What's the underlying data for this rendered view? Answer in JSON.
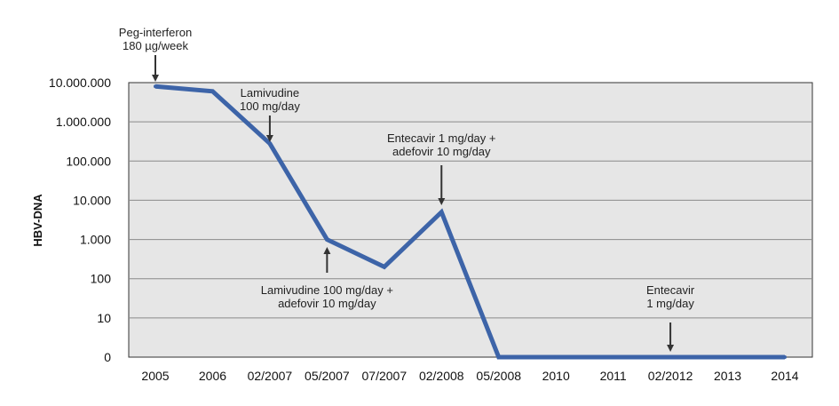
{
  "chart_data": {
    "type": "line",
    "title": "",
    "xlabel": "",
    "ylabel": "HBV-DNA",
    "y_scale": "log",
    "y_ticks": [
      "0",
      "10",
      "100",
      "1.000",
      "10.000",
      "100.000",
      "1.000.000",
      "10.000.000"
    ],
    "categories": [
      "2005",
      "2006",
      "02/2007",
      "05/2007",
      "07/2007",
      "02/2008",
      "05/2008",
      "2010",
      "2011",
      "02/2012",
      "2013",
      "2014"
    ],
    "series": [
      {
        "values": [
          8000000,
          6000000,
          280000,
          1000,
          200,
          5000,
          0,
          0,
          0,
          0,
          0,
          0
        ],
        "color": "#3d64a8"
      }
    ],
    "grid": true,
    "plot_background": "#e6e6e6",
    "annotations": [
      {
        "lines": [
          "Peg-interferon",
          "180 µg/week"
        ],
        "category": "2005",
        "arrow": "down"
      },
      {
        "lines": [
          "Lamivudine",
          "100 mg/day"
        ],
        "category": "02/2007",
        "arrow": "down"
      },
      {
        "lines": [
          "Entecavir 1 mg/day +",
          "adefovir 10 mg/day"
        ],
        "category": "02/2008",
        "arrow": "down"
      },
      {
        "lines": [
          "Lamivudine 100 mg/day +",
          "adefovir 10 mg/day"
        ],
        "category": "05/2007",
        "arrow": "up"
      },
      {
        "lines": [
          "Entecavir",
          "1 mg/day"
        ],
        "category": "02/2012",
        "arrow": "down"
      }
    ]
  }
}
